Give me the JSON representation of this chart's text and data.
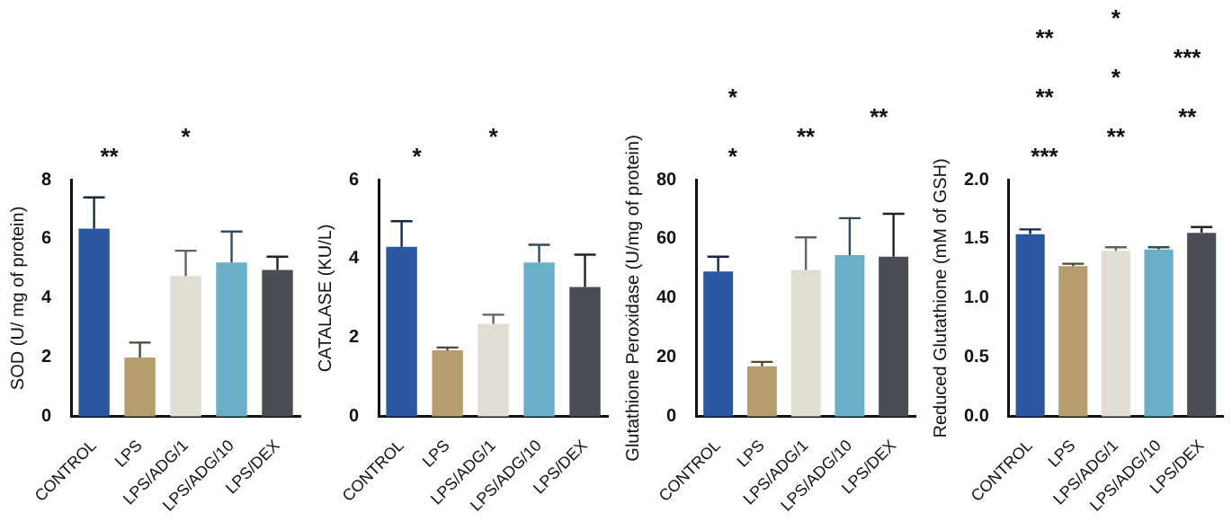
{
  "chart_data": [
    {
      "type": "bar",
      "ylabel": "SOD (U/ mg of protein)",
      "categories": [
        "CONTROL",
        "LPS",
        "LPS/ADG/1",
        "LPS/ADG/10",
        "LPS/DEX"
      ],
      "values": [
        6.35,
        2.0,
        4.75,
        5.2,
        4.95
      ],
      "colors": [
        "#2b56a0",
        "#b59d6e",
        "#e2ddd3",
        "#6aaec8",
        "#4a4e54"
      ],
      "errors": [
        [
          6.35,
          7.4
        ],
        [
          2.0,
          2.5
        ],
        [
          4.75,
          5.6
        ],
        [
          5.2,
          6.25
        ],
        [
          4.95,
          5.4
        ]
      ],
      "ylim": [
        0,
        8
      ],
      "yticks": [
        0,
        2,
        4,
        6,
        8
      ],
      "grid": false,
      "legend": false,
      "annotations": [
        "**",
        "*"
      ]
    },
    {
      "type": "bar",
      "ylabel": "CATALASE (KU/L)",
      "categories": [
        "CONTROL",
        "LPS",
        "LPS/ADG/1",
        "LPS/ADG/10",
        "LPS/DEX"
      ],
      "values": [
        4.3,
        1.68,
        2.35,
        3.9,
        3.28
      ],
      "colors": [
        "#2b56a0",
        "#b59d6e",
        "#e2ddd3",
        "#6aaec8",
        "#4a4e54"
      ],
      "errors": [
        [
          4.3,
          4.95
        ],
        [
          1.68,
          1.75
        ],
        [
          2.35,
          2.58
        ],
        [
          3.9,
          4.35
        ],
        [
          3.28,
          4.1
        ]
      ],
      "ylim": [
        0,
        6
      ],
      "yticks": [
        0,
        2,
        4,
        6
      ],
      "grid": false,
      "legend": false,
      "annotations": [
        "*",
        "*"
      ]
    },
    {
      "type": "bar",
      "ylabel": "Glutathione Peroxidase (U/mg of protein)",
      "categories": [
        "CONTROL",
        "LPS",
        "LPS/ADG/1",
        "LPS/ADG/10",
        "LPS/DEX"
      ],
      "values": [
        49,
        17,
        49.5,
        54.5,
        54
      ],
      "colors": [
        "#2b56a0",
        "#b59d6e",
        "#e2ddd3",
        "#6aaec8",
        "#4a4e54"
      ],
      "errors": [
        [
          49,
          54
        ],
        [
          17,
          18.5
        ],
        [
          49.5,
          60.5
        ],
        [
          54.5,
          67
        ],
        [
          54,
          68.5
        ]
      ],
      "ylim": [
        0,
        80
      ],
      "yticks": [
        0,
        20,
        40,
        60,
        80
      ],
      "grid": false,
      "legend": false,
      "annotations": [
        "*",
        "**",
        "**",
        "*"
      ]
    },
    {
      "type": "bar",
      "ylabel": "Reduced Glutathione (mM of GSH)",
      "categories": [
        "CONTROL",
        "LPS",
        "LPS/ADG/1",
        "LPS/ADG/10",
        "LPS/DEX"
      ],
      "values": [
        1.54,
        1.27,
        1.4,
        1.41,
        1.55
      ],
      "colors": [
        "#2b56a0",
        "#b59d6e",
        "#e2ddd3",
        "#6aaec8",
        "#4a4e54"
      ],
      "errors": [
        [
          1.54,
          1.58
        ],
        [
          1.27,
          1.29
        ],
        [
          1.4,
          1.43
        ],
        [
          1.41,
          1.43
        ],
        [
          1.55,
          1.6
        ]
      ],
      "ylim": [
        0,
        2.0
      ],
      "yticks": [
        {
          "value": 0,
          "label": "0.0"
        },
        {
          "value": 0.5,
          "label": "0.5"
        },
        {
          "value": 1,
          "label": "1.0"
        },
        {
          "value": 1.5,
          "label": "1.5"
        },
        {
          "value": 2,
          "label": "2.0"
        }
      ],
      "grid": false,
      "legend": false,
      "annotations": [
        "***",
        "**",
        "**",
        "**",
        "*",
        "***",
        "**",
        "*"
      ]
    }
  ]
}
